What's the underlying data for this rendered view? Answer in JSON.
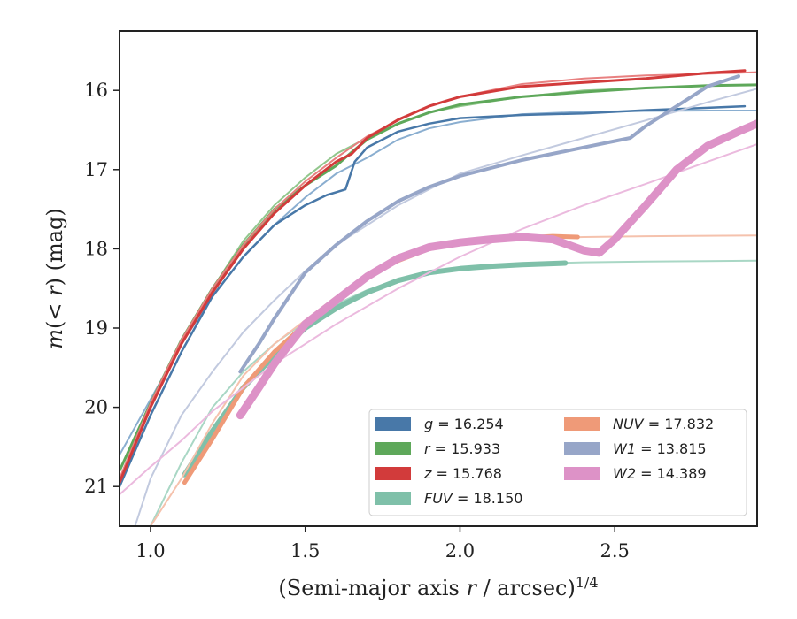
{
  "chart_data": {
    "type": "line",
    "xlabel": "(Semi-major axis r / arcsec)^1/4",
    "ylabel": "m(< r) (mag)",
    "xlim": [
      0.9,
      2.96
    ],
    "ylim": [
      21.5,
      15.25
    ],
    "y_inverted": true,
    "grid": false,
    "x_ticks": [
      1.0,
      1.5,
      2.0,
      2.5
    ],
    "y_ticks": [
      16,
      17,
      18,
      19,
      20,
      21
    ],
    "x_tick_labels": [
      "1.0",
      "1.5",
      "2.0",
      "2.5"
    ],
    "y_tick_labels": [
      "16",
      "17",
      "18",
      "19",
      "20",
      "21"
    ],
    "legend": {
      "placement": "lower-right",
      "columns": 2,
      "entries": [
        {
          "band": "g",
          "label": "g = 16.254",
          "color": "#4878a8"
        },
        {
          "band": "r",
          "label": "r = 15.933",
          "color": "#5ea85a"
        },
        {
          "band": "z",
          "label": "z = 15.768",
          "color": "#d23b3b"
        },
        {
          "band": "FUV",
          "label": "FUV = 18.150",
          "color": "#7fc0a9"
        },
        {
          "band": "NUV",
          "label": "NUV = 17.832",
          "color": "#ef9a78"
        },
        {
          "band": "W1",
          "label": "W1 = 13.815",
          "color": "#97a6c8"
        },
        {
          "band": "W2",
          "label": "W2 = 14.389",
          "color": "#dd92c7"
        }
      ]
    },
    "series": [
      {
        "band": "g",
        "kind": "fit",
        "color": "#8aaed0",
        "width": 2,
        "x": [
          0.9,
          1.0,
          1.1,
          1.2,
          1.3,
          1.4,
          1.5,
          1.6,
          1.7,
          1.8,
          1.9,
          2.0,
          2.2,
          2.4,
          2.6,
          2.8,
          2.96
        ],
        "y": [
          20.6,
          19.9,
          19.2,
          18.6,
          18.1,
          17.7,
          17.35,
          17.05,
          16.85,
          16.62,
          16.48,
          16.4,
          16.3,
          16.27,
          16.26,
          16.255,
          16.254
        ]
      },
      {
        "band": "g",
        "kind": "data",
        "color": "#4878a8",
        "width": 2.5,
        "x": [
          0.9,
          1.0,
          1.1,
          1.2,
          1.3,
          1.4,
          1.5,
          1.57,
          1.63,
          1.66,
          1.7,
          1.8,
          1.9,
          2.0,
          2.2,
          2.4,
          2.6,
          2.8,
          2.92
        ],
        "y": [
          21.0,
          20.1,
          19.3,
          18.6,
          18.1,
          17.7,
          17.45,
          17.32,
          17.25,
          16.9,
          16.72,
          16.52,
          16.42,
          16.35,
          16.31,
          16.29,
          16.25,
          16.22,
          16.2
        ]
      },
      {
        "band": "r",
        "kind": "fit",
        "color": "#92c78d",
        "width": 2,
        "x": [
          0.9,
          1.0,
          1.1,
          1.2,
          1.3,
          1.4,
          1.5,
          1.6,
          1.7,
          1.8,
          1.9,
          2.0,
          2.2,
          2.4,
          2.6,
          2.8,
          2.96
        ],
        "y": [
          20.8,
          19.95,
          19.2,
          18.5,
          17.9,
          17.45,
          17.1,
          16.8,
          16.6,
          16.42,
          16.28,
          16.2,
          16.08,
          16.0,
          15.97,
          15.94,
          15.93
        ]
      },
      {
        "band": "r",
        "kind": "data",
        "color": "#5ea85a",
        "width": 3,
        "x": [
          0.9,
          1.0,
          1.1,
          1.2,
          1.3,
          1.4,
          1.5,
          1.6,
          1.65,
          1.7,
          1.8,
          1.9,
          2.0,
          2.2,
          2.4,
          2.6,
          2.8,
          2.96
        ],
        "y": [
          20.8,
          19.95,
          19.15,
          18.5,
          17.95,
          17.5,
          17.2,
          16.95,
          16.78,
          16.62,
          16.42,
          16.28,
          16.18,
          16.08,
          16.02,
          15.97,
          15.94,
          15.93
        ]
      },
      {
        "band": "z",
        "kind": "fit",
        "color": "#e88080",
        "width": 2,
        "x": [
          0.9,
          1.0,
          1.1,
          1.2,
          1.3,
          1.4,
          1.5,
          1.6,
          1.7,
          1.8,
          1.9,
          2.0,
          2.2,
          2.4,
          2.6,
          2.8,
          2.96
        ],
        "y": [
          20.9,
          19.95,
          19.15,
          18.5,
          17.95,
          17.5,
          17.15,
          16.85,
          16.58,
          16.38,
          16.2,
          16.08,
          15.92,
          15.85,
          15.81,
          15.79,
          15.77
        ]
      },
      {
        "band": "z",
        "kind": "data",
        "color": "#d23b3b",
        "width": 3,
        "x": [
          0.9,
          1.0,
          1.1,
          1.2,
          1.3,
          1.4,
          1.5,
          1.6,
          1.65,
          1.7,
          1.8,
          1.9,
          2.0,
          2.2,
          2.4,
          2.6,
          2.8,
          2.92
        ],
        "y": [
          20.95,
          20.0,
          19.2,
          18.55,
          18.0,
          17.55,
          17.2,
          16.9,
          16.8,
          16.6,
          16.37,
          16.2,
          16.08,
          15.95,
          15.9,
          15.85,
          15.78,
          15.75
        ]
      },
      {
        "band": "FUV",
        "kind": "fit",
        "color": "#a9d7c5",
        "width": 2,
        "x": [
          1.0,
          1.1,
          1.2,
          1.3,
          1.4,
          1.5,
          1.6,
          1.7,
          1.8,
          1.9,
          2.0,
          2.2,
          2.4,
          2.6,
          2.8,
          2.96
        ],
        "y": [
          21.5,
          20.7,
          20.0,
          19.55,
          19.2,
          18.92,
          18.7,
          18.52,
          18.4,
          18.3,
          18.24,
          18.19,
          18.17,
          18.16,
          18.155,
          18.15
        ]
      },
      {
        "band": "FUV",
        "kind": "data",
        "color": "#7fc0a9",
        "width": 6,
        "x": [
          1.11,
          1.2,
          1.3,
          1.4,
          1.5,
          1.6,
          1.7,
          1.8,
          1.9,
          2.0,
          2.1,
          2.2,
          2.34
        ],
        "y": [
          20.85,
          20.3,
          19.75,
          19.35,
          19.0,
          18.75,
          18.55,
          18.4,
          18.3,
          18.25,
          18.22,
          18.2,
          18.18
        ]
      },
      {
        "band": "NUV",
        "kind": "fit",
        "color": "#f5c2ad",
        "width": 2,
        "x": [
          1.0,
          1.1,
          1.2,
          1.3,
          1.4,
          1.5,
          1.6,
          1.7,
          1.8,
          1.9,
          2.0,
          2.2,
          2.4,
          2.6,
          2.8,
          2.96
        ],
        "y": [
          21.5,
          20.9,
          20.2,
          19.6,
          19.2,
          18.9,
          18.6,
          18.35,
          18.15,
          18.02,
          17.94,
          17.87,
          17.85,
          17.84,
          17.835,
          17.832
        ]
      },
      {
        "band": "NUV",
        "kind": "data",
        "color": "#ef9a78",
        "width": 5,
        "x": [
          1.11,
          1.2,
          1.3,
          1.4,
          1.5,
          1.6,
          1.7,
          1.8,
          1.9,
          2.0,
          2.1,
          2.2,
          2.3,
          2.38
        ],
        "y": [
          20.95,
          20.4,
          19.75,
          19.3,
          18.95,
          18.65,
          18.35,
          18.15,
          18.0,
          17.93,
          17.88,
          17.86,
          17.84,
          17.85
        ]
      },
      {
        "band": "W1",
        "kind": "fit",
        "color": "#c2cadf",
        "width": 2,
        "x": [
          0.95,
          1.0,
          1.1,
          1.2,
          1.3,
          1.4,
          1.5,
          1.6,
          1.8,
          2.0,
          2.2,
          2.4,
          2.6,
          2.8,
          2.96
        ],
        "y": [
          21.5,
          20.9,
          20.1,
          19.55,
          19.05,
          18.65,
          18.28,
          17.95,
          17.45,
          17.05,
          16.82,
          16.6,
          16.38,
          16.15,
          15.98
        ]
      },
      {
        "band": "W1",
        "kind": "data",
        "color": "#97a6c8",
        "width": 4,
        "x": [
          1.29,
          1.35,
          1.4,
          1.5,
          1.6,
          1.7,
          1.8,
          1.9,
          2.0,
          2.2,
          2.4,
          2.55,
          2.6,
          2.7,
          2.8,
          2.9
        ],
        "y": [
          19.55,
          19.2,
          18.88,
          18.3,
          17.95,
          17.65,
          17.4,
          17.22,
          17.08,
          16.88,
          16.72,
          16.6,
          16.45,
          16.2,
          15.95,
          15.82
        ]
      },
      {
        "band": "W2",
        "kind": "fit",
        "color": "#ebbade",
        "width": 2,
        "x": [
          0.9,
          1.0,
          1.1,
          1.2,
          1.4,
          1.6,
          1.8,
          2.0,
          2.2,
          2.4,
          2.6,
          2.8,
          2.96
        ],
        "y": [
          21.1,
          20.75,
          20.42,
          20.05,
          19.45,
          18.95,
          18.5,
          18.1,
          17.75,
          17.45,
          17.18,
          16.9,
          16.68
        ]
      },
      {
        "band": "W2",
        "kind": "data",
        "color": "#dd92c7",
        "width": 9,
        "x": [
          1.29,
          1.35,
          1.4,
          1.45,
          1.5,
          1.6,
          1.7,
          1.8,
          1.9,
          2.0,
          2.1,
          2.2,
          2.3,
          2.4,
          2.45,
          2.5,
          2.6,
          2.7,
          2.8,
          2.9,
          2.96
        ],
        "y": [
          20.1,
          19.75,
          19.45,
          19.2,
          18.95,
          18.65,
          18.35,
          18.12,
          17.98,
          17.92,
          17.88,
          17.85,
          17.88,
          18.02,
          18.05,
          17.88,
          17.45,
          17.0,
          16.7,
          16.52,
          16.42
        ]
      }
    ]
  }
}
